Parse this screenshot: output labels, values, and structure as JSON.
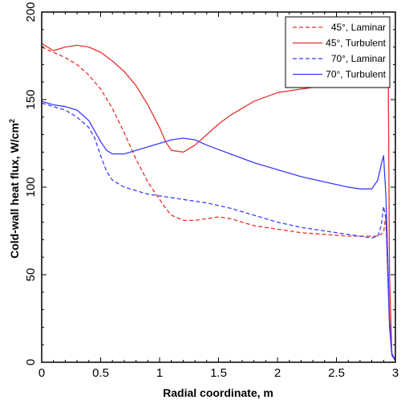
{
  "chart_data": {
    "type": "line",
    "xlabel": "Radial coordinate, m",
    "ylabel": "Cold-wall heat flux, W/cm",
    "ylabel_superscript": "2",
    "xlim": [
      0,
      3.0
    ],
    "ylim": [
      0,
      200
    ],
    "x_ticks": [
      0,
      0.5,
      1,
      1.5,
      2,
      2.5,
      3
    ],
    "x_tick_labels": [
      "0",
      "0.5",
      "1",
      "1.5",
      "2",
      "2.5",
      "3"
    ],
    "y_ticks": [
      0,
      50,
      100,
      150,
      200
    ],
    "y_tick_labels": [
      "0",
      "50",
      "100",
      "150",
      "200"
    ],
    "grid": false,
    "legend_position": "top-right",
    "series": [
      {
        "name": "45°, Laminar",
        "color": "#e8302a",
        "dash": "dashed",
        "x": [
          0,
          0.1,
          0.2,
          0.3,
          0.4,
          0.5,
          0.6,
          0.7,
          0.8,
          0.9,
          1.0,
          1.05,
          1.1,
          1.2,
          1.3,
          1.4,
          1.5,
          1.6,
          1.7,
          1.8,
          2.0,
          2.2,
          2.4,
          2.6,
          2.8,
          2.85,
          2.9,
          2.92,
          2.95,
          2.97,
          3.0
        ],
        "y": [
          180,
          177,
          174,
          170,
          164,
          156,
          145,
          131,
          116,
          103,
          93,
          88,
          84,
          81,
          81,
          82,
          83,
          82,
          80,
          78,
          76,
          74,
          73,
          72,
          72,
          72,
          74,
          84,
          20,
          4,
          1
        ]
      },
      {
        "name": "45°, Turbulent",
        "color": "#e8302a",
        "dash": "solid",
        "x": [
          0,
          0.1,
          0.2,
          0.3,
          0.4,
          0.5,
          0.6,
          0.7,
          0.8,
          0.9,
          1.0,
          1.05,
          1.1,
          1.2,
          1.3,
          1.4,
          1.5,
          1.6,
          1.8,
          2.0,
          2.2,
          2.4,
          2.6,
          2.8,
          2.9,
          2.92,
          2.93,
          2.94,
          2.95,
          2.97,
          3.0
        ],
        "y": [
          182,
          178,
          180,
          181,
          180,
          177,
          172,
          166,
          158,
          147,
          134,
          126,
          121,
          120,
          124,
          130,
          136,
          141,
          149,
          154,
          156,
          158,
          158,
          157,
          157,
          160,
          165,
          158,
          50,
          5,
          1
        ]
      },
      {
        "name": "70°, Laminar",
        "color": "#3b3bff",
        "dash": "dashed",
        "x": [
          0,
          0.1,
          0.2,
          0.3,
          0.4,
          0.45,
          0.5,
          0.55,
          0.6,
          0.7,
          0.8,
          0.9,
          1.0,
          1.2,
          1.4,
          1.6,
          1.8,
          2.0,
          2.2,
          2.4,
          2.6,
          2.8,
          2.85,
          2.88,
          2.9,
          2.92,
          2.95,
          2.97,
          3.0
        ],
        "y": [
          148,
          146,
          144,
          140,
          134,
          128,
          118,
          109,
          104,
          100,
          98,
          96,
          95,
          93,
          91,
          88,
          84,
          80,
          77,
          75,
          73,
          71,
          72,
          78,
          89,
          82,
          20,
          4,
          1
        ]
      },
      {
        "name": "70°, Turbulent",
        "color": "#3b3bff",
        "dash": "solid",
        "x": [
          0,
          0.1,
          0.2,
          0.3,
          0.4,
          0.45,
          0.5,
          0.55,
          0.6,
          0.7,
          0.8,
          0.9,
          1.0,
          1.1,
          1.2,
          1.3,
          1.4,
          1.6,
          1.8,
          2.0,
          2.2,
          2.4,
          2.6,
          2.7,
          2.8,
          2.85,
          2.88,
          2.9,
          2.92,
          2.95,
          2.97,
          3.0
        ],
        "y": [
          149,
          147,
          146,
          144,
          138,
          132,
          126,
          121,
          119,
          119,
          121,
          123,
          125,
          127,
          128,
          127,
          124,
          119,
          114,
          110,
          106,
          103,
          100,
          99,
          99,
          104,
          113,
          118,
          95,
          25,
          5,
          1
        ]
      }
    ]
  }
}
